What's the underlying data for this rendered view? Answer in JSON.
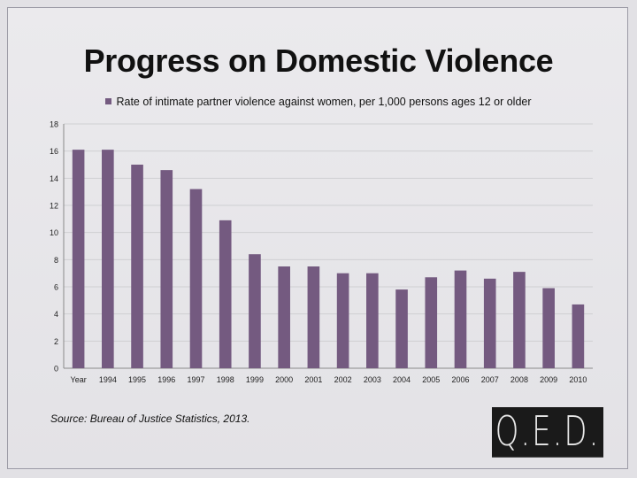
{
  "colors": {
    "bar": "#745a80",
    "grid": "#cfcfd2",
    "axis": "#8a8a8a",
    "logo_bg": "#1a1a1a",
    "logo_text": "#e8e8e8"
  },
  "chart_data": {
    "type": "bar",
    "title": "Progress on Domestic Violence",
    "xlabel": "",
    "ylabel": "",
    "ylim": [
      0,
      18
    ],
    "yticks": [
      0,
      2,
      4,
      6,
      8,
      10,
      12,
      14,
      16,
      18
    ],
    "grid": true,
    "legend_placement": "top",
    "categories": [
      "Year",
      "1994",
      "1995",
      "1996",
      "1997",
      "1998",
      "1999",
      "2000",
      "2001",
      "2002",
      "2003",
      "2004",
      "2005",
      "2006",
      "2007",
      "2008",
      "2009",
      "2010"
    ],
    "series": [
      {
        "name": "Rate of intimate partner violence against women, per 1,000 persons ages 12 or older",
        "values": [
          16.1,
          16.1,
          15.0,
          14.6,
          13.2,
          10.9,
          8.4,
          7.5,
          7.5,
          7.0,
          7.0,
          5.8,
          6.7,
          7.2,
          6.6,
          7.1,
          5.9,
          4.7
        ]
      }
    ]
  },
  "footer": {
    "source": "Source: Bureau of Justice Statistics, 2013.",
    "logo_text": "Q.E.D."
  }
}
